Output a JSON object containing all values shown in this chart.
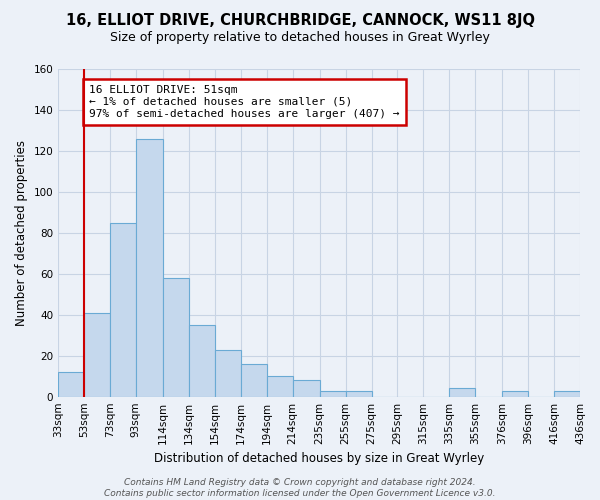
{
  "title": "16, ELLIOT DRIVE, CHURCHBRIDGE, CANNOCK, WS11 8JQ",
  "subtitle": "Size of property relative to detached houses in Great Wyrley",
  "xlabel": "Distribution of detached houses by size in Great Wyrley",
  "ylabel": "Number of detached properties",
  "footer_line1": "Contains HM Land Registry data © Crown copyright and database right 2024.",
  "footer_line2": "Contains public sector information licensed under the Open Government Licence v3.0.",
  "annotation_line1": "16 ELLIOT DRIVE: 51sqm",
  "annotation_line2": "← 1% of detached houses are smaller (5)",
  "annotation_line3": "97% of semi-detached houses are larger (407) →",
  "bar_edges": [
    33,
    53,
    73,
    93,
    114,
    134,
    154,
    174,
    194,
    214,
    235,
    255,
    275,
    295,
    315,
    335,
    355,
    376,
    396,
    416,
    436
  ],
  "bar_heights": [
    12,
    41,
    85,
    126,
    58,
    35,
    23,
    16,
    10,
    8,
    3,
    3,
    0,
    0,
    0,
    4,
    0,
    3,
    0,
    3
  ],
  "bar_color": "#c5d8ed",
  "bar_edge_color": "#6aaad4",
  "red_line_x": 53,
  "xlim_left": 33,
  "xlim_right": 436,
  "ylim_top": 160,
  "grid_color": "#c8d4e4",
  "bg_color": "#ecf1f8",
  "plot_bg_color": "#ecf1f8",
  "annotation_box_color": "white",
  "annotation_box_edge_color": "#cc0000",
  "title_fontsize": 10.5,
  "subtitle_fontsize": 9,
  "axis_label_fontsize": 8.5,
  "tick_fontsize": 7.5,
  "annotation_fontsize": 8,
  "footer_fontsize": 6.5,
  "yticks": [
    0,
    20,
    40,
    60,
    80,
    100,
    120,
    140,
    160
  ]
}
